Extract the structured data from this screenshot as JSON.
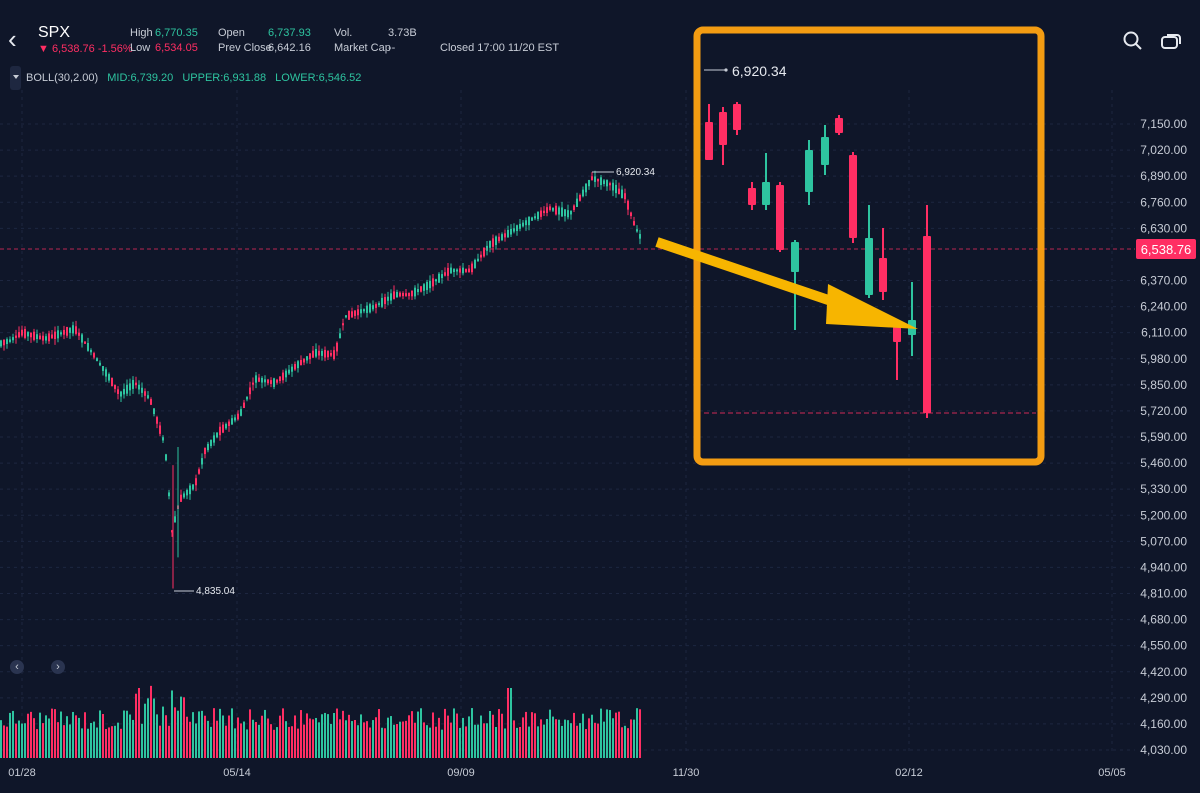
{
  "header": {
    "back_icon": "chevron-left-icon",
    "symbol": "SPX",
    "price_change": "▼ 6,538.76 -1.56%",
    "high_label": "High",
    "high_value": "6,770.35",
    "low_label": "Low",
    "low_value": "6,534.05",
    "open_label": "Open",
    "open_value": "6,737.93",
    "prev_close_label": "Prev Close",
    "prev_close_value": "6,642.16",
    "vol_label": "Vol.",
    "vol_value": "3.73B",
    "market_cap_label": "Market Cap",
    "market_cap_value": "--",
    "status": "Closed 17:00 11/20 EST",
    "search_icon": "search-icon",
    "overlay_icon": "window-overlay-icon"
  },
  "indicator": {
    "name": "BOLL(30,2.00)",
    "mid": "MID:6,739.20",
    "upper": "UPPER:6,931.88",
    "lower": "LOWER:6,546.52"
  },
  "colors": {
    "up": "#2ec4a0",
    "down": "#ff2e63",
    "highlight": "#f39c12",
    "arrow": "#f7b500",
    "background": "#0f1629"
  },
  "chart_data": {
    "type": "candlestick",
    "y_ticks": [
      "7,150.00",
      "7,020.00",
      "6,890.00",
      "6,760.00",
      "6,630.00",
      "6,370.00",
      "6,240.00",
      "6,110.00",
      "5,980.00",
      "5,850.00",
      "5,720.00",
      "5,590.00",
      "5,460.00",
      "5,330.00",
      "5,200.00",
      "5,070.00",
      "4,940.00",
      "4,810.00",
      "4,680.00",
      "4,550.00",
      "4,420.00",
      "4,290.00",
      "4,160.00",
      "4,030.00"
    ],
    "x_ticks": [
      "01/28",
      "05/14",
      "09/09",
      "11/30",
      "02/12",
      "05/05"
    ],
    "current_price": "6,538.76",
    "current_price_value": 6538.76,
    "high_marker": "6,920.34",
    "low_marker": "4,835.04",
    "inset_high_marker": "6,920.34",
    "volume_panel": true,
    "nav_left": "‹",
    "nav_right": "›"
  }
}
